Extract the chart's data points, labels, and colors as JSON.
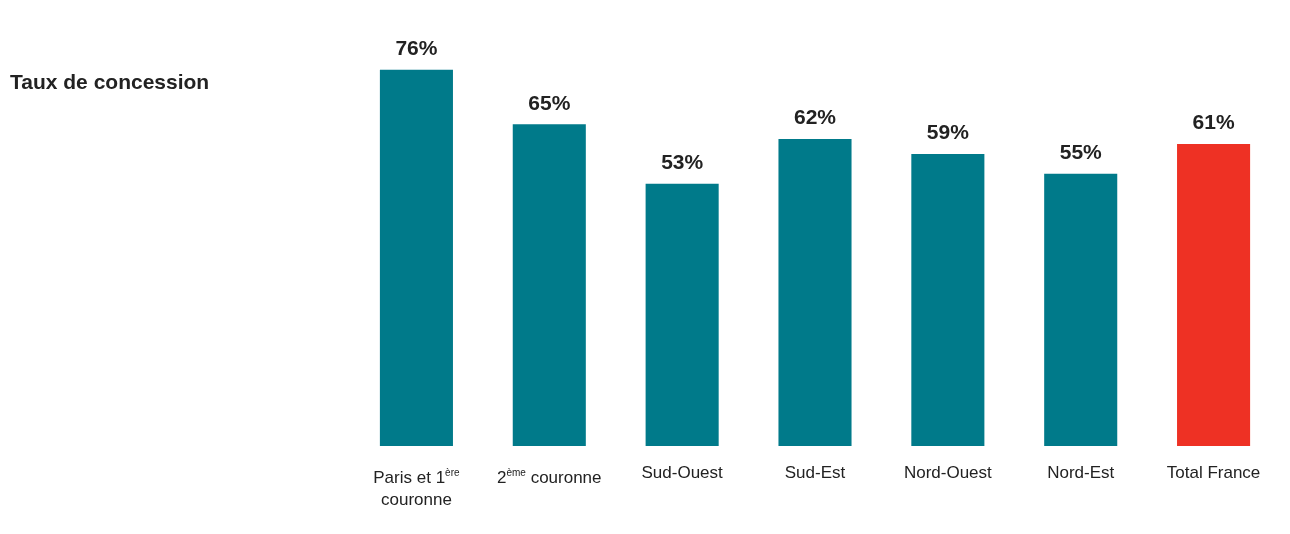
{
  "chart_data": {
    "type": "bar",
    "title": "Taux de concession",
    "categories": [
      "Paris et 1$^{ère}$ couronne",
      "2$^{ème}$ couronne",
      "Sud-Ouest",
      "Sud-Est",
      "Nord-Ouest",
      "Nord-Est",
      "Total France"
    ],
    "values": [
      76,
      65,
      53,
      62,
      59,
      55,
      61
    ],
    "colors": [
      "#007a8a",
      "#007a8a",
      "#007a8a",
      "#007a8a",
      "#007a8a",
      "#007a8a",
      "#ee3124"
    ],
    "value_labels": [
      "76%",
      "65%",
      "53%",
      "62%",
      "59%",
      "55%",
      "61%"
    ],
    "grid": false,
    "legend": false
  }
}
